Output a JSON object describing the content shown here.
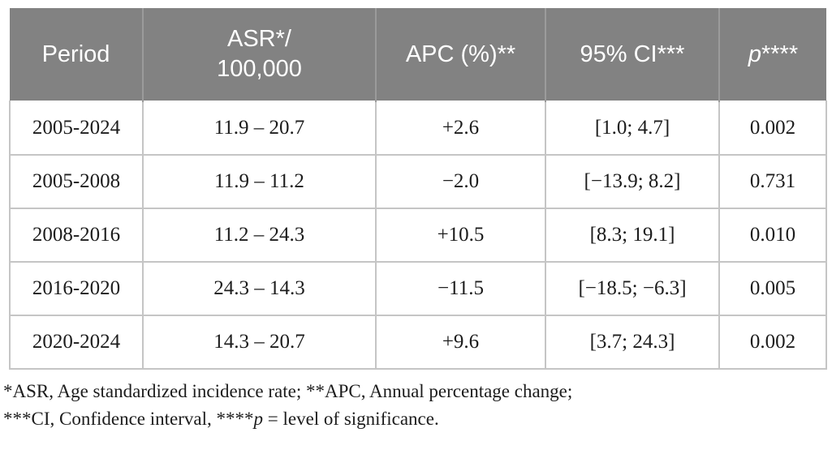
{
  "header": {
    "period": "Period",
    "asr_line1": "ASR*/",
    "asr_line2": "100,000",
    "apc": "APC (%)**",
    "ci": "95% CI***",
    "p_italic": "p",
    "p_stars": "****"
  },
  "rows": [
    {
      "period": "2005-2024",
      "asr": "11.9 – 20.7",
      "apc": "+2.6",
      "ci": "[1.0; 4.7]",
      "p": "0.002"
    },
    {
      "period": "2005-2008",
      "asr": "11.9 – 11.2",
      "apc": "−2.0",
      "ci": "[−13.9; 8.2]",
      "p": "0.731"
    },
    {
      "period": "2008-2016",
      "asr": "11.2 – 24.3",
      "apc": "+10.5",
      "ci": "[8.3; 19.1]",
      "p": "0.010"
    },
    {
      "period": "2016-2020",
      "asr": "24.3 – 14.3",
      "apc": "−11.5",
      "ci": "[−18.5; −6.3]",
      "p": "0.005"
    },
    {
      "period": "2020-2024",
      "asr": "14.3 – 20.7",
      "apc": "+9.6",
      "ci": "[3.7; 24.3]",
      "p": "0.002"
    }
  ],
  "footnotes": {
    "line1": "*ASR, Age standardized incidence rate; **APC, Annual percentage change;",
    "line2_pre": "***CI, Confidence interval, ****",
    "line2_p": "p",
    "line2_post": " = level of significance."
  },
  "colors": {
    "header_bg": "#828282",
    "header_text": "#ffffff",
    "header_sep": "#9b9b9b",
    "border": "#c5c5c5",
    "body_text": "#1c1c1c",
    "page_bg": "#ffffff"
  }
}
